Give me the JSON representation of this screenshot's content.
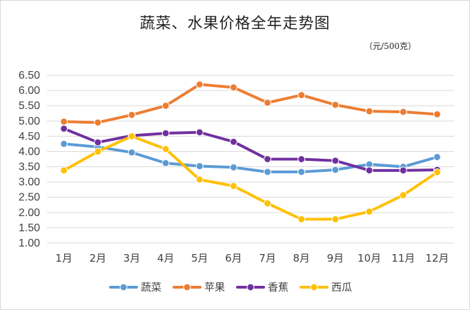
{
  "chart_data": {
    "type": "line",
    "title": "蔬菜、水果价格全年走势图",
    "unit_note": "（元/500克）",
    "categories": [
      "1月",
      "2月",
      "3月",
      "4月",
      "5月",
      "6月",
      "7月",
      "8月",
      "9月",
      "10月",
      "11月",
      "12月"
    ],
    "y_ticks": [
      "1.00",
      "1.50",
      "2.00",
      "2.50",
      "3.00",
      "3.50",
      "4.00",
      "4.50",
      "5.00",
      "5.50",
      "6.00",
      "6.50"
    ],
    "ylim": [
      1.0,
      6.5
    ],
    "grid": true,
    "legend_position": "bottom",
    "series": [
      {
        "name": "蔬菜",
        "color": "#5B9BD5",
        "values": [
          4.25,
          4.15,
          3.97,
          3.62,
          3.52,
          3.48,
          3.33,
          3.33,
          3.4,
          3.58,
          3.5,
          3.82
        ]
      },
      {
        "name": "苹果",
        "color": "#ED7D31",
        "values": [
          4.98,
          4.95,
          5.2,
          5.5,
          6.2,
          6.1,
          5.6,
          5.85,
          5.53,
          5.32,
          5.3,
          5.22
        ]
      },
      {
        "name": "香蕉",
        "color": "#7030A0",
        "values": [
          4.75,
          4.3,
          4.52,
          4.6,
          4.63,
          4.32,
          3.75,
          3.75,
          3.7,
          3.38,
          3.38,
          3.4
        ]
      },
      {
        "name": "西瓜",
        "color": "#FFC000",
        "values": [
          3.38,
          4.0,
          4.5,
          4.08,
          3.08,
          2.87,
          2.3,
          1.78,
          1.78,
          2.03,
          2.57,
          3.32
        ]
      }
    ]
  }
}
